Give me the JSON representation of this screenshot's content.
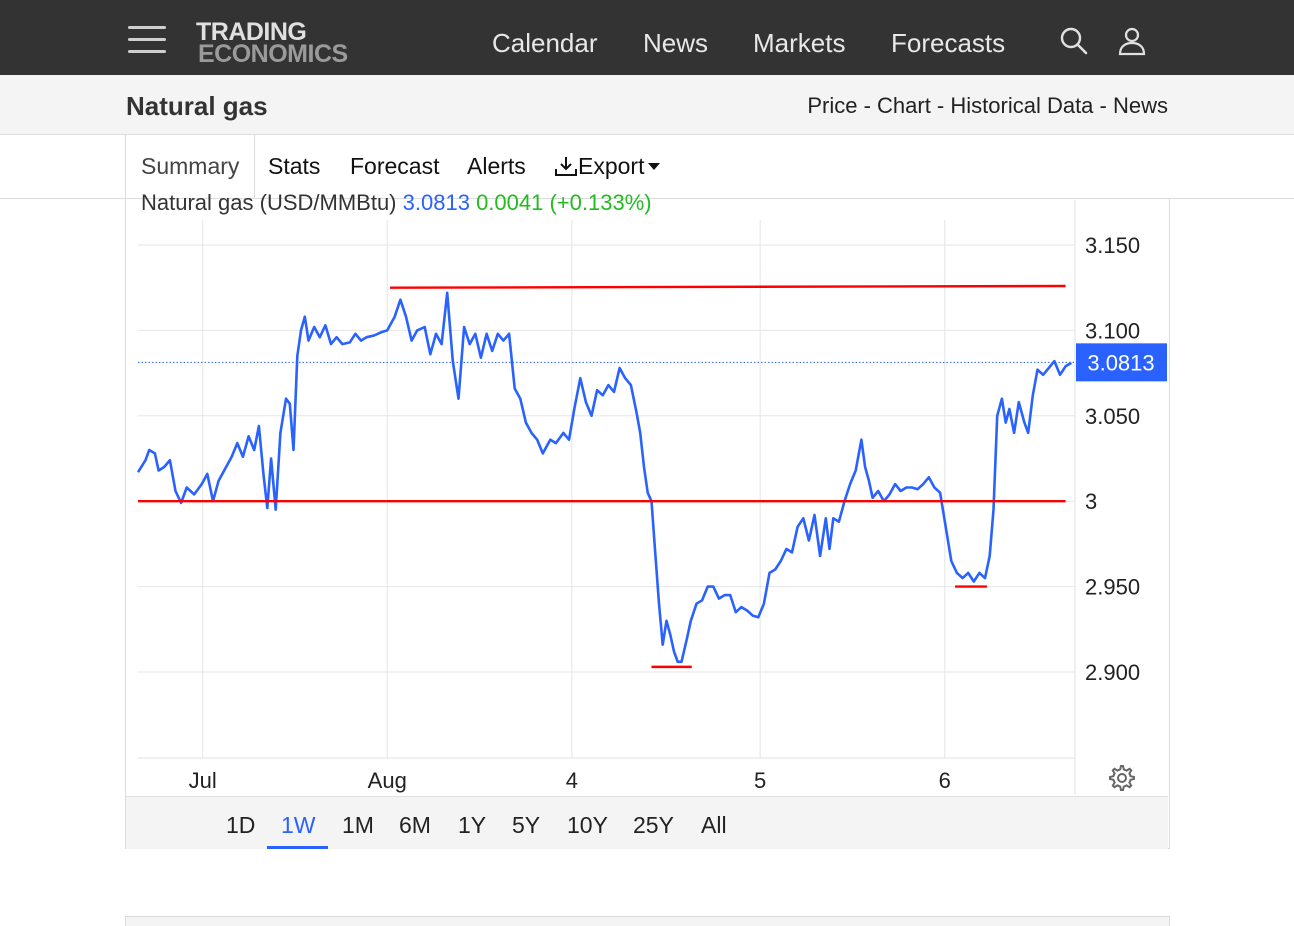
{
  "header": {
    "logo_line1": "TRADING",
    "logo_line2": "ECONOMICS",
    "nav": [
      "Calendar",
      "News",
      "Markets",
      "Forecasts"
    ]
  },
  "page": {
    "title": "Natural gas",
    "links": [
      "Price",
      "Chart",
      "Historical Data",
      "News"
    ],
    "link_separator": " - "
  },
  "tabs": [
    "Summary",
    "Stats",
    "Forecast",
    "Alerts",
    "Export"
  ],
  "ranges": [
    "1D",
    "1W",
    "1M",
    "6M",
    "1Y",
    "5Y",
    "10Y",
    "25Y",
    "All"
  ],
  "active_range": "1W",
  "legend": {
    "name": "Natural gas (USD/MMBtu)",
    "price": "3.0813",
    "change": "0.0041",
    "change_pct": "(+0.133%)"
  },
  "colors": {
    "series": "#2962ff",
    "support_resistance": "#ff0000",
    "header_bg": "#333333",
    "change_positive": "#22bb22"
  },
  "chart_data": {
    "type": "line",
    "title": "",
    "xlabel": "",
    "ylabel": "",
    "ylim": [
      2.85,
      3.165
    ],
    "yticks": [
      {
        "value": 3.15,
        "label": "3.150"
      },
      {
        "value": 3.1,
        "label": "3.100"
      },
      {
        "value": 3.05,
        "label": "3.050"
      },
      {
        "value": 3.0,
        "label": "3"
      },
      {
        "value": 2.95,
        "label": "2.950"
      },
      {
        "value": 2.9,
        "label": "2.900"
      }
    ],
    "x_range": [
      0,
      100
    ],
    "xticks": [
      {
        "x": 6.9,
        "label": "Jul"
      },
      {
        "x": 26.6,
        "label": "Aug"
      },
      {
        "x": 46.3,
        "label": "4"
      },
      {
        "x": 66.4,
        "label": "5"
      },
      {
        "x": 86.1,
        "label": "6"
      }
    ],
    "last_value": 3.0813,
    "last_value_label": "3.0813",
    "grid": true,
    "series": [
      {
        "points": [
          [
            0,
            3.017
          ],
          [
            0.8,
            3.024
          ],
          [
            1.2,
            3.03
          ],
          [
            1.8,
            3.028
          ],
          [
            2.2,
            3.018
          ],
          [
            2.8,
            3.02
          ],
          [
            3.4,
            3.024
          ],
          [
            4.0,
            3.006
          ],
          [
            4.6,
            2.999
          ],
          [
            5.2,
            3.008
          ],
          [
            6.0,
            3.004
          ],
          [
            6.8,
            3.01
          ],
          [
            7.4,
            3.016
          ],
          [
            8.0,
            3.0
          ],
          [
            8.6,
            3.012
          ],
          [
            9.4,
            3.02
          ],
          [
            10.0,
            3.026
          ],
          [
            10.6,
            3.034
          ],
          [
            11.2,
            3.026
          ],
          [
            11.8,
            3.038
          ],
          [
            12.4,
            3.03
          ],
          [
            12.9,
            3.044
          ],
          [
            13.4,
            3.015
          ],
          [
            13.8,
            2.996
          ],
          [
            14.2,
            3.025
          ],
          [
            14.7,
            2.995
          ],
          [
            15.2,
            3.04
          ],
          [
            15.8,
            3.06
          ],
          [
            16.2,
            3.057
          ],
          [
            16.6,
            3.03
          ],
          [
            17.0,
            3.085
          ],
          [
            17.4,
            3.1
          ],
          [
            17.8,
            3.108
          ],
          [
            18.2,
            3.094
          ],
          [
            18.8,
            3.102
          ],
          [
            19.4,
            3.096
          ],
          [
            20.0,
            3.103
          ],
          [
            20.6,
            3.092
          ],
          [
            21.2,
            3.096
          ],
          [
            21.8,
            3.092
          ],
          [
            22.6,
            3.093
          ],
          [
            23.2,
            3.098
          ],
          [
            23.8,
            3.094
          ],
          [
            24.4,
            3.096
          ],
          [
            25.2,
            3.097
          ],
          [
            26.0,
            3.099
          ],
          [
            26.6,
            3.1
          ],
          [
            27.4,
            3.108
          ],
          [
            28.0,
            3.118
          ],
          [
            28.6,
            3.108
          ],
          [
            29.2,
            3.094
          ],
          [
            29.8,
            3.1
          ],
          [
            30.6,
            3.102
          ],
          [
            31.2,
            3.086
          ],
          [
            31.8,
            3.098
          ],
          [
            32.4,
            3.092
          ],
          [
            33.0,
            3.122
          ],
          [
            33.6,
            3.082
          ],
          [
            34.2,
            3.06
          ],
          [
            34.8,
            3.102
          ],
          [
            35.4,
            3.092
          ],
          [
            36.0,
            3.098
          ],
          [
            36.6,
            3.084
          ],
          [
            37.2,
            3.098
          ],
          [
            37.8,
            3.088
          ],
          [
            38.4,
            3.098
          ],
          [
            39.0,
            3.094
          ],
          [
            39.6,
            3.098
          ],
          [
            40.2,
            3.066
          ],
          [
            40.8,
            3.06
          ],
          [
            41.4,
            3.046
          ],
          [
            42.0,
            3.04
          ],
          [
            42.6,
            3.036
          ],
          [
            43.2,
            3.028
          ],
          [
            44.0,
            3.036
          ],
          [
            44.6,
            3.034
          ],
          [
            45.4,
            3.04
          ],
          [
            46.0,
            3.036
          ],
          [
            46.6,
            3.055
          ],
          [
            47.2,
            3.072
          ],
          [
            47.8,
            3.058
          ],
          [
            48.4,
            3.05
          ],
          [
            49.0,
            3.065
          ],
          [
            49.6,
            3.062
          ],
          [
            50.2,
            3.068
          ],
          [
            50.8,
            3.064
          ],
          [
            51.4,
            3.078
          ],
          [
            52.0,
            3.072
          ],
          [
            52.6,
            3.068
          ],
          [
            53.2,
            3.052
          ],
          [
            53.6,
            3.04
          ],
          [
            54.0,
            3.02
          ],
          [
            54.4,
            3.005
          ],
          [
            54.8,
            3.0
          ],
          [
            55.2,
            2.97
          ],
          [
            55.6,
            2.94
          ],
          [
            56.0,
            2.916
          ],
          [
            56.4,
            2.93
          ],
          [
            56.8,
            2.922
          ],
          [
            57.2,
            2.912
          ],
          [
            57.6,
            2.906
          ],
          [
            58.0,
            2.906
          ],
          [
            58.6,
            2.92
          ],
          [
            59.0,
            2.93
          ],
          [
            59.6,
            2.94
          ],
          [
            60.2,
            2.942
          ],
          [
            60.8,
            2.95
          ],
          [
            61.4,
            2.95
          ],
          [
            62.0,
            2.943
          ],
          [
            62.6,
            2.945
          ],
          [
            63.2,
            2.945
          ],
          [
            63.8,
            2.935
          ],
          [
            64.4,
            2.938
          ],
          [
            65.0,
            2.936
          ],
          [
            65.6,
            2.933
          ],
          [
            66.2,
            2.932
          ],
          [
            66.8,
            2.94
          ],
          [
            67.4,
            2.958
          ],
          [
            68.0,
            2.96
          ],
          [
            68.6,
            2.965
          ],
          [
            69.2,
            2.972
          ],
          [
            69.8,
            2.97
          ],
          [
            70.4,
            2.985
          ],
          [
            71.0,
            2.99
          ],
          [
            71.6,
            2.977
          ],
          [
            72.2,
            2.992
          ],
          [
            72.8,
            2.968
          ],
          [
            73.4,
            2.99
          ],
          [
            73.8,
            2.972
          ],
          [
            74.2,
            2.99
          ],
          [
            74.8,
            2.988
          ],
          [
            75.4,
            3.0
          ],
          [
            76.0,
            3.01
          ],
          [
            76.6,
            3.018
          ],
          [
            77.2,
            3.036
          ],
          [
            77.6,
            3.02
          ],
          [
            78.0,
            3.012
          ],
          [
            78.4,
            3.002
          ],
          [
            79.0,
            3.006
          ],
          [
            79.6,
            3.0
          ],
          [
            80.2,
            3.004
          ],
          [
            80.8,
            3.01
          ],
          [
            81.4,
            3.006
          ],
          [
            82.0,
            3.008
          ],
          [
            82.6,
            3.008
          ],
          [
            83.2,
            3.007
          ],
          [
            83.8,
            3.01
          ],
          [
            84.4,
            3.014
          ],
          [
            85.0,
            3.008
          ],
          [
            85.6,
            3.005
          ],
          [
            86.2,
            2.985
          ],
          [
            86.8,
            2.965
          ],
          [
            87.4,
            2.958
          ],
          [
            88.0,
            2.955
          ],
          [
            88.6,
            2.958
          ],
          [
            89.2,
            2.953
          ],
          [
            89.8,
            2.958
          ],
          [
            90.4,
            2.955
          ],
          [
            90.9,
            2.968
          ],
          [
            91.3,
            2.995
          ],
          [
            91.7,
            3.05
          ],
          [
            92.2,
            3.06
          ],
          [
            92.6,
            3.046
          ],
          [
            93.0,
            3.054
          ],
          [
            93.5,
            3.04
          ],
          [
            94.0,
            3.058
          ],
          [
            94.6,
            3.046
          ],
          [
            95.0,
            3.04
          ],
          [
            95.5,
            3.062
          ],
          [
            96.0,
            3.077
          ],
          [
            96.6,
            3.074
          ],
          [
            97.2,
            3.078
          ],
          [
            97.8,
            3.082
          ],
          [
            98.4,
            3.074
          ],
          [
            99.0,
            3.079
          ],
          [
            99.6,
            3.081
          ]
        ]
      }
    ],
    "hlines": [
      {
        "x0": 26.9,
        "x1": 99.0,
        "y0": 3.125,
        "y1": 3.126
      },
      {
        "x0": 0,
        "x1": 99.0,
        "y0": 3.0,
        "y1": 3.0
      },
      {
        "x0": 54.8,
        "x1": 59.1,
        "y0": 2.903,
        "y1": 2.903
      },
      {
        "x0": 87.2,
        "x1": 90.6,
        "y0": 2.95,
        "y1": 2.95
      }
    ]
  }
}
